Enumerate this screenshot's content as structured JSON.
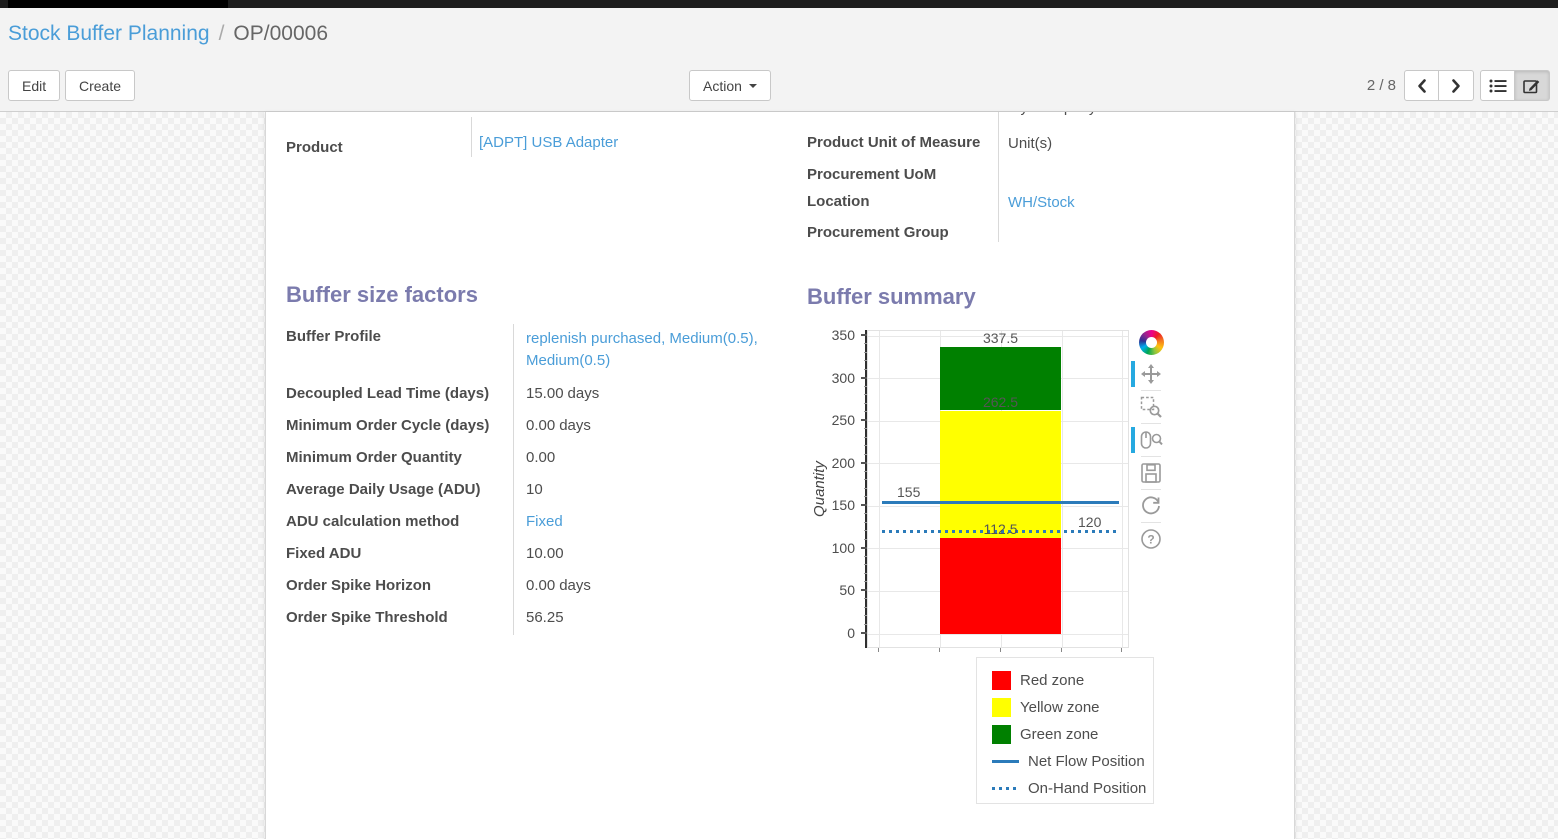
{
  "breadcrumb": {
    "parent": "Stock Buffer Planning",
    "separator": "/",
    "current": "OP/00006"
  },
  "control_panel": {
    "edit_label": "Edit",
    "create_label": "Create",
    "action_label": "Action",
    "pager_value": "2 / 8"
  },
  "form": {
    "company_clipped_value": "My Company",
    "left_fields": [
      {
        "label": "Product",
        "value": "[ADPT] USB Adapter"
      }
    ],
    "right_fields": [
      {
        "label": "Product Unit of Measure",
        "value": "Unit(s)"
      },
      {
        "label": "Procurement UoM",
        "value": ""
      },
      {
        "label": "Location",
        "value": "WH/Stock"
      },
      {
        "label": "Procurement Group",
        "value": ""
      }
    ]
  },
  "buffer_size_factors": {
    "title": "Buffer size factors",
    "fields": [
      {
        "label": "Buffer Profile",
        "value": "replenish purchased, Medium(0.5), Medium(0.5)"
      },
      {
        "label": "Decoupled Lead Time (days)",
        "value": "15.00",
        "suffix": "days"
      },
      {
        "label": "Minimum Order Cycle (days)",
        "value": "0.00",
        "suffix": "days"
      },
      {
        "label": "Minimum Order Quantity",
        "value": "0.00"
      },
      {
        "label": "Average Daily Usage (ADU)",
        "value": "10"
      },
      {
        "label": "ADU calculation method",
        "value": "Fixed"
      },
      {
        "label": "Fixed ADU",
        "value": "10.00"
      },
      {
        "label": "Order Spike Horizon",
        "value": "0.00",
        "suffix": "days"
      },
      {
        "label": "Order Spike Threshold",
        "value": "56.25"
      }
    ]
  },
  "buffer_summary": {
    "title": "Buffer summary"
  },
  "chart_data": {
    "type": "bar",
    "title": "Buffer summary",
    "ylabel": "Quantity",
    "ylim": [
      0,
      350
    ],
    "y_major_ticks": [
      0,
      50,
      100,
      150,
      200,
      250,
      300,
      350
    ],
    "y_minor_step": 10,
    "grid": true,
    "zones": [
      {
        "name": "Red zone",
        "from": 0,
        "to": 112.5,
        "color": "#ff0000"
      },
      {
        "name": "Yellow zone",
        "from": 112.5,
        "to": 262.5,
        "color": "#ffff00"
      },
      {
        "name": "Green zone",
        "from": 262.5,
        "to": 337.5,
        "color": "#008000"
      }
    ],
    "lines": [
      {
        "name": "Net Flow Position",
        "value": 155,
        "style": "solid",
        "color": "#2b7bba"
      },
      {
        "name": "On-Hand Position",
        "value": 120,
        "style": "dotted",
        "color": "#2b7bba"
      }
    ],
    "zone_labels": [
      {
        "text": "337.5",
        "value": 337.5
      },
      {
        "text": "262.5",
        "value": 262.5
      },
      {
        "text": "112.5",
        "value": 112.5
      }
    ],
    "line_labels": [
      {
        "text": "155",
        "value": 155,
        "side": "left"
      },
      {
        "text": "120",
        "value": 120,
        "side": "right"
      }
    ],
    "legend_items": [
      {
        "label": "Red zone",
        "swatch": "red"
      },
      {
        "label": "Yellow zone",
        "swatch": "yellow"
      },
      {
        "label": "Green zone",
        "swatch": "green"
      },
      {
        "label": "Net Flow Position",
        "swatch": "solid-line"
      },
      {
        "label": "On-Hand Position",
        "swatch": "dotted-line"
      }
    ],
    "legend_position": "below-right"
  },
  "bokeh_toolbar": {
    "tools": [
      {
        "name": "bokeh-logo",
        "active": false
      },
      {
        "name": "pan",
        "active": true
      },
      {
        "name": "box-zoom",
        "active": false
      },
      {
        "name": "wheel-zoom",
        "active": true
      },
      {
        "name": "save",
        "active": false
      },
      {
        "name": "reset",
        "active": false
      },
      {
        "name": "help",
        "active": false
      }
    ]
  },
  "colors": {
    "red_zone": "#ff0000",
    "yellow_zone": "#ffff00",
    "green_zone": "#008000",
    "position_line_blue": "#2b7bba",
    "heading_purple": "#7b7bad",
    "link_blue": "#4a9dd8",
    "active_tool_blue": "#26a9e0"
  }
}
